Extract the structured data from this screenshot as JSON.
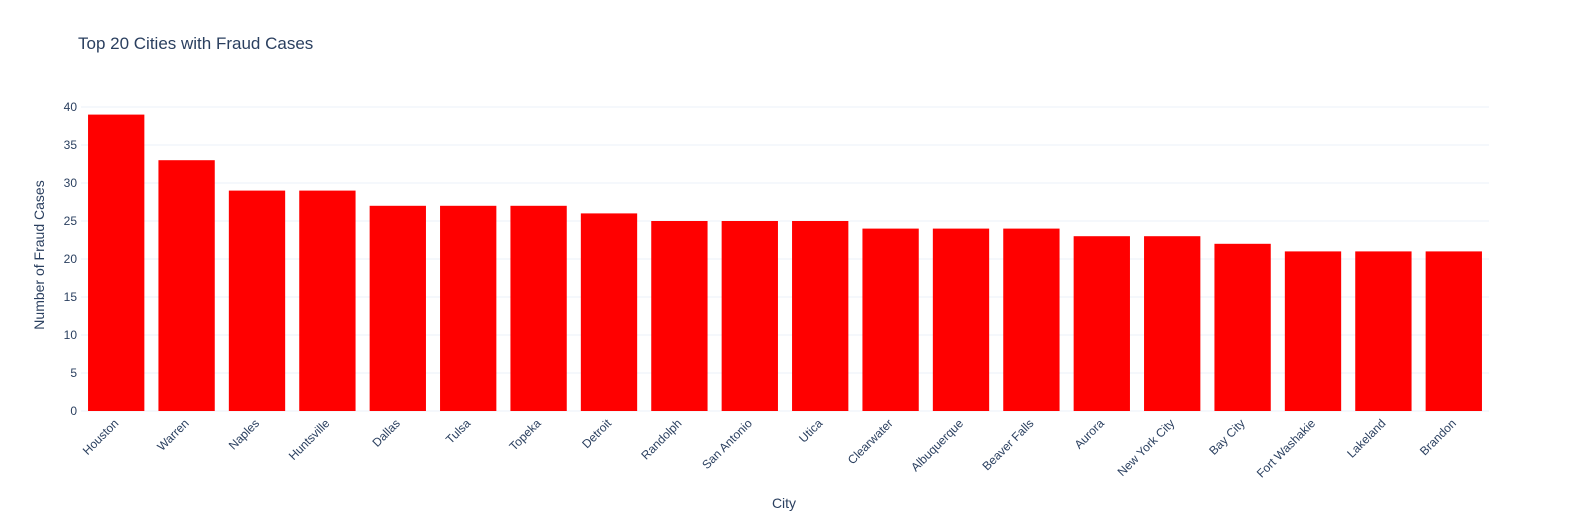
{
  "chart_data": {
    "type": "bar",
    "title": "Top 20 Cities with Fraud Cases",
    "xlabel": "City",
    "ylabel": "Number of Fraud Cases",
    "categories": [
      "Houston",
      "Warren",
      "Naples",
      "Huntsville",
      "Dallas",
      "Tulsa",
      "Topeka",
      "Detroit",
      "Randolph",
      "San Antonio",
      "Utica",
      "Clearwater",
      "Albuquerque",
      "Beaver Falls",
      "Aurora",
      "New York City",
      "Bay City",
      "Fort Washakie",
      "Lakeland",
      "Brandon"
    ],
    "values": [
      39,
      33,
      29,
      29,
      27,
      27,
      27,
      26,
      25,
      25,
      25,
      24,
      24,
      24,
      23,
      23,
      22,
      21,
      21,
      21
    ],
    "ylim": [
      0,
      40
    ],
    "yticks": [
      0,
      5,
      10,
      15,
      20,
      25,
      30,
      35,
      40
    ],
    "bar_color": "#ff0000",
    "grid": true,
    "legend": "none"
  }
}
